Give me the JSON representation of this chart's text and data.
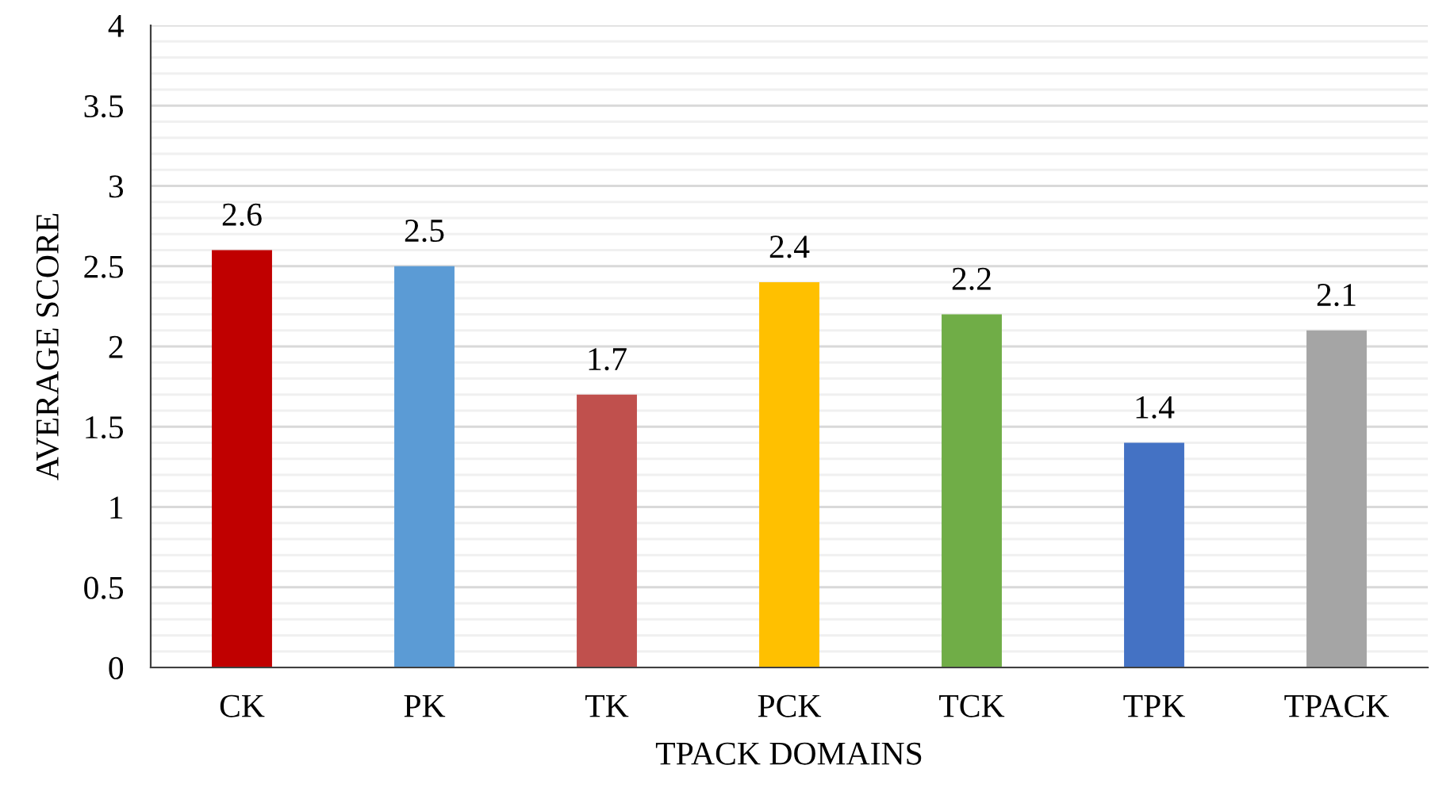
{
  "chart_data": {
    "type": "bar",
    "xlabel": "TPACK DOMAINS",
    "ylabel": "AVERAGE SCORE",
    "categories": [
      "CK",
      "PK",
      "TK",
      "PCK",
      "TCK",
      "TPK",
      "TPACK"
    ],
    "values": [
      2.6,
      2.5,
      1.7,
      2.4,
      2.2,
      1.4,
      2.1
    ],
    "colors": [
      "#c00000",
      "#5b9bd5",
      "#c0504d",
      "#ffc000",
      "#70ad47",
      "#4472c4",
      "#a5a5a5"
    ],
    "ylim": [
      0,
      4
    ],
    "yticks": [
      0,
      {
        "value": 0.1,
        "label": null
      },
      {
        "value": 0.2,
        "label": null
      },
      {
        "value": 0.3,
        "label": null
      },
      {
        "value": 0.4,
        "label": null
      },
      0.5,
      {
        "value": 0.6,
        "label": null
      },
      {
        "value": 0.7,
        "label": null
      },
      {
        "value": 0.8,
        "label": null
      },
      {
        "value": 0.9,
        "label": null
      },
      1,
      {
        "value": 1.1,
        "label": null
      },
      {
        "value": 1.2,
        "label": null
      },
      {
        "value": 1.3,
        "label": null
      },
      {
        "value": 1.4,
        "label": null
      },
      1.5,
      {
        "value": 1.6,
        "label": null
      },
      {
        "value": 1.7,
        "label": null
      },
      {
        "value": 1.8,
        "label": null
      },
      {
        "value": 1.9,
        "label": null
      },
      2,
      {
        "value": 2.1,
        "label": null
      },
      {
        "value": 2.2,
        "label": null
      },
      {
        "value": 2.3,
        "label": null
      },
      {
        "value": 2.4,
        "label": null
      },
      2.5,
      {
        "value": 2.6,
        "label": null
      },
      {
        "value": 2.7,
        "label": null
      },
      {
        "value": 2.8,
        "label": null
      },
      {
        "value": 2.9,
        "label": null
      },
      3,
      {
        "value": 3.1,
        "label": null
      },
      {
        "value": 3.2,
        "label": null
      },
      {
        "value": 3.3,
        "label": null
      },
      {
        "value": 3.4,
        "label": null
      },
      3.5,
      {
        "value": 3.6,
        "label": null
      },
      {
        "value": 3.7,
        "label": null
      },
      {
        "value": 3.8,
        "label": null
      },
      {
        "value": 3.9,
        "label": null
      },
      4
    ],
    "grid": "y",
    "data_labels": true
  }
}
